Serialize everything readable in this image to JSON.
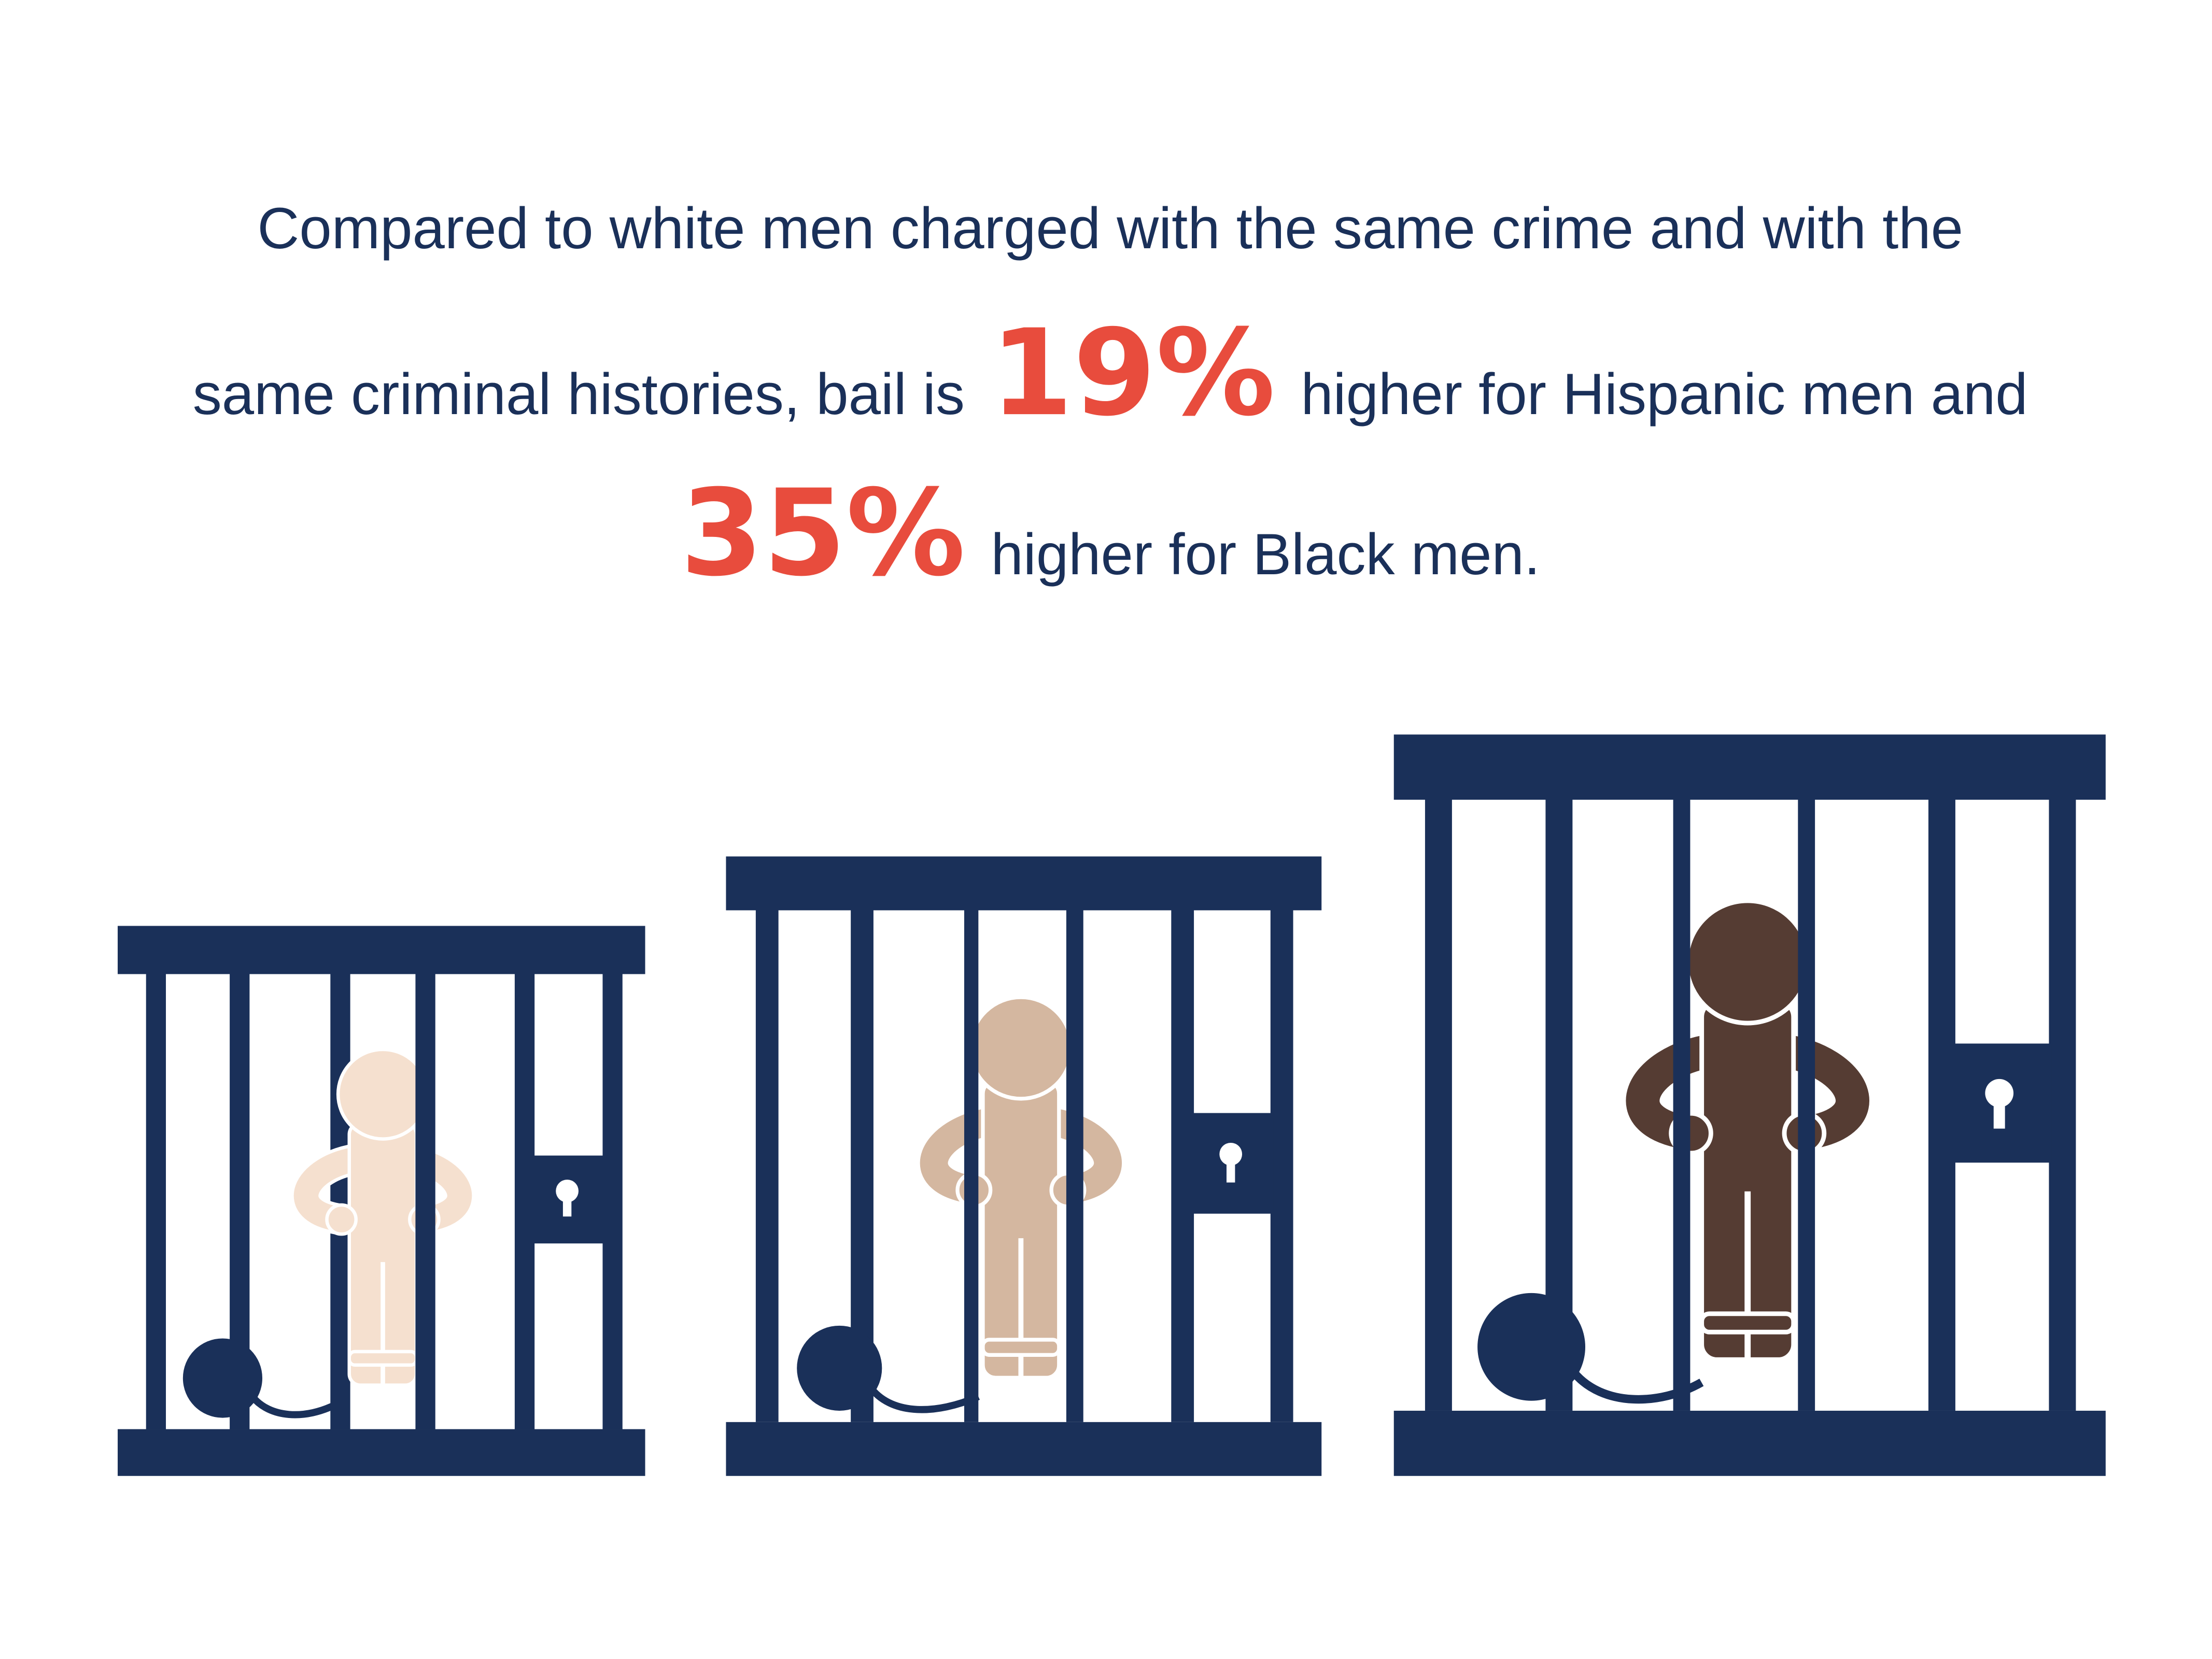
{
  "headline": {
    "line1": "Compared to white men charged with the same crime and with the",
    "line2_start": "same criminal histories, bail is",
    "hispanic_figure": "19%",
    "line2_end": "higher for Hispanic men and",
    "black_figure": "35%",
    "line3_end": "higher for Black men."
  }
}
